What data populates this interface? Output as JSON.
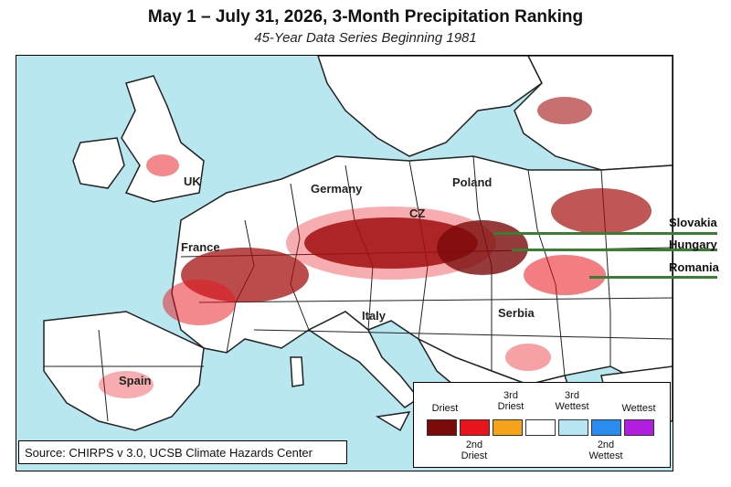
{
  "title": "May 1 – July 31, 2026, 3-Month Precipitation Ranking",
  "subtitle": "45-Year Data Series Beginning 1981",
  "map": {
    "countries": [
      {
        "key": "uk",
        "label": "UK"
      },
      {
        "key": "germany",
        "label": "Germany"
      },
      {
        "key": "poland",
        "label": "Poland"
      },
      {
        "key": "france",
        "label": "France"
      },
      {
        "key": "cz",
        "label": "CZ"
      },
      {
        "key": "italy",
        "label": "Italy"
      },
      {
        "key": "serbia",
        "label": "Serbia"
      },
      {
        "key": "spain",
        "label": "Spain"
      }
    ],
    "callouts": [
      {
        "key": "slovakia",
        "label": "Slovakia"
      },
      {
        "key": "hungary",
        "label": "Hungary"
      },
      {
        "key": "romania",
        "label": "Romania"
      }
    ],
    "colors": {
      "sea": "#b8e7ef",
      "land": "#ffffff",
      "border": "#222222",
      "callout": "#3a7d33"
    }
  },
  "source": "Source: CHIRPS v 3.0, UCSB Climate Hazards Center",
  "legend": {
    "top_labels": [
      "Driest",
      "3rd\nDriest",
      "3rd\nWettest",
      "Wettest"
    ],
    "bottom_labels": [
      "2nd\nDriest",
      "2nd\nWettest"
    ],
    "swatches": [
      {
        "name": "driest",
        "color": "#7b0a0a"
      },
      {
        "name": "2nd-driest",
        "color": "#e8141b"
      },
      {
        "name": "3rd-driest",
        "color": "#f5a31a"
      },
      {
        "name": "neutral",
        "color": "#ffffff"
      },
      {
        "name": "3rd-wettest",
        "color": "#b7e6f3"
      },
      {
        "name": "2nd-wettest",
        "color": "#2b8cf0"
      },
      {
        "name": "wettest",
        "color": "#b21ee0"
      }
    ]
  }
}
